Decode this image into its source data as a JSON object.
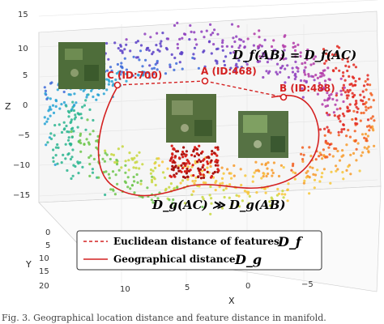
{
  "chart_data": {
    "type": "scatter",
    "projection": "3d",
    "axes": {
      "x": {
        "label": "X",
        "ticks": [
          "10",
          "5",
          "0",
          "−5"
        ]
      },
      "y": {
        "label": "Y",
        "ticks": [
          "0",
          "5",
          "10",
          "15",
          "20"
        ]
      },
      "z": {
        "label": "Z",
        "ticks": [
          "15",
          "10",
          "5",
          "0",
          "−5",
          "−10",
          "−15"
        ],
        "range": [
          -17,
          16
        ]
      }
    },
    "grid": true,
    "colormap": "rainbow (manifold parameter)",
    "points": [
      {
        "id": "A",
        "label": "A (ID:468)",
        "color": "#d42020"
      },
      {
        "id": "B",
        "label": "B (ID:488)",
        "color": "#d42020"
      },
      {
        "id": "C",
        "label": "C (ID:700)",
        "color": "#d42020"
      }
    ],
    "annotations": {
      "feature_equal": "D_f(AB) = D_f(AC)",
      "geo_gap": "D_g(AC) ≫ D_g(AB)"
    },
    "legend": {
      "placement": "lower-center",
      "items": [
        {
          "label": "Euclidean distance of features",
          "symbol": "D_f",
          "style": "dashed",
          "color": "#d42020"
        },
        {
          "label": "Geographical distance",
          "symbol": "D_g",
          "style": "solid",
          "color": "#d42020"
        }
      ]
    }
  },
  "caption": "Fig. 3. Geographical location distance and feature distance in manifold."
}
